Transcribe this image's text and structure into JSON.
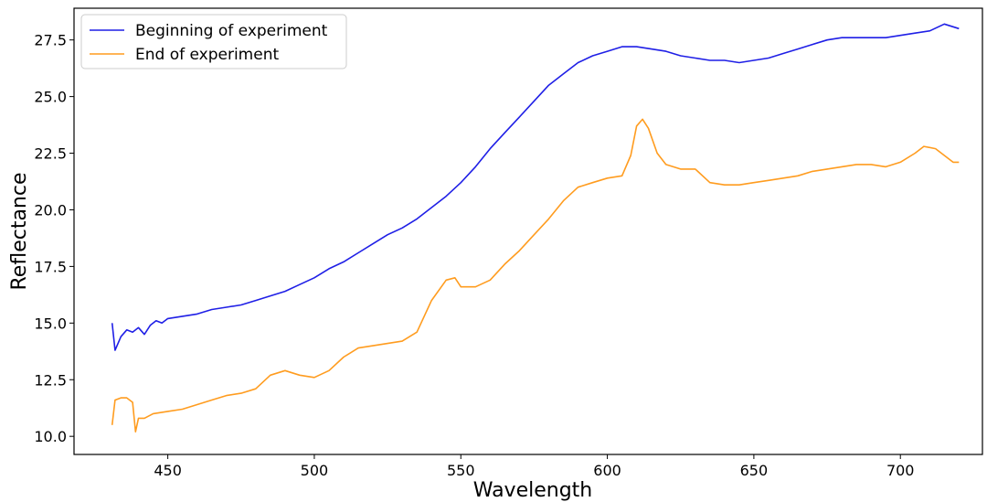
{
  "chart_data": {
    "type": "line",
    "xlabel": "Wavelength",
    "ylabel": "Reflectance",
    "xlim": [
      418,
      728
    ],
    "ylim": [
      9.2,
      28.9
    ],
    "x_ticks": [
      450,
      500,
      550,
      600,
      650,
      700
    ],
    "x_tick_labels": [
      "450",
      "500",
      "550",
      "600",
      "650",
      "700"
    ],
    "y_ticks": [
      10.0,
      12.5,
      15.0,
      17.5,
      20.0,
      22.5,
      25.0,
      27.5
    ],
    "y_tick_labels": [
      "10.0",
      "12.5",
      "15.0",
      "17.5",
      "20.0",
      "22.5",
      "25.0",
      "27.5"
    ],
    "grid": false,
    "legend_position": "top-left",
    "series": [
      {
        "name": "Beginning of experiment",
        "color": "#1f1fe6",
        "points": [
          [
            431,
            15.0
          ],
          [
            432,
            13.8
          ],
          [
            434,
            14.4
          ],
          [
            436,
            14.7
          ],
          [
            438,
            14.6
          ],
          [
            440,
            14.8
          ],
          [
            442,
            14.5
          ],
          [
            444,
            14.9
          ],
          [
            446,
            15.1
          ],
          [
            448,
            15.0
          ],
          [
            450,
            15.2
          ],
          [
            455,
            15.3
          ],
          [
            460,
            15.4
          ],
          [
            465,
            15.6
          ],
          [
            470,
            15.7
          ],
          [
            475,
            15.8
          ],
          [
            480,
            16.0
          ],
          [
            485,
            16.2
          ],
          [
            490,
            16.4
          ],
          [
            495,
            16.7
          ],
          [
            500,
            17.0
          ],
          [
            505,
            17.4
          ],
          [
            510,
            17.7
          ],
          [
            515,
            18.1
          ],
          [
            520,
            18.5
          ],
          [
            525,
            18.9
          ],
          [
            530,
            19.2
          ],
          [
            535,
            19.6
          ],
          [
            540,
            20.1
          ],
          [
            545,
            20.6
          ],
          [
            550,
            21.2
          ],
          [
            555,
            21.9
          ],
          [
            560,
            22.7
          ],
          [
            565,
            23.4
          ],
          [
            570,
            24.1
          ],
          [
            575,
            24.8
          ],
          [
            580,
            25.5
          ],
          [
            585,
            26.0
          ],
          [
            590,
            26.5
          ],
          [
            595,
            26.8
          ],
          [
            600,
            27.0
          ],
          [
            605,
            27.2
          ],
          [
            610,
            27.2
          ],
          [
            615,
            27.1
          ],
          [
            620,
            27.0
          ],
          [
            625,
            26.8
          ],
          [
            630,
            26.7
          ],
          [
            635,
            26.6
          ],
          [
            640,
            26.6
          ],
          [
            645,
            26.5
          ],
          [
            650,
            26.6
          ],
          [
            655,
            26.7
          ],
          [
            660,
            26.9
          ],
          [
            665,
            27.1
          ],
          [
            670,
            27.3
          ],
          [
            675,
            27.5
          ],
          [
            680,
            27.6
          ],
          [
            685,
            27.6
          ],
          [
            690,
            27.6
          ],
          [
            695,
            27.6
          ],
          [
            700,
            27.7
          ],
          [
            705,
            27.8
          ],
          [
            710,
            27.9
          ],
          [
            715,
            28.2
          ],
          [
            720,
            28.0
          ]
        ]
      },
      {
        "name": "End of experiment",
        "color": "#ff9c1f",
        "points": [
          [
            431,
            10.5
          ],
          [
            432,
            11.6
          ],
          [
            434,
            11.7
          ],
          [
            436,
            11.7
          ],
          [
            438,
            11.5
          ],
          [
            439,
            10.2
          ],
          [
            440,
            10.8
          ],
          [
            442,
            10.8
          ],
          [
            445,
            11.0
          ],
          [
            450,
            11.1
          ],
          [
            455,
            11.2
          ],
          [
            460,
            11.4
          ],
          [
            465,
            11.6
          ],
          [
            470,
            11.8
          ],
          [
            475,
            11.9
          ],
          [
            480,
            12.1
          ],
          [
            485,
            12.7
          ],
          [
            490,
            12.9
          ],
          [
            495,
            12.7
          ],
          [
            500,
            12.6
          ],
          [
            505,
            12.9
          ],
          [
            510,
            13.5
          ],
          [
            515,
            13.9
          ],
          [
            520,
            14.0
          ],
          [
            525,
            14.1
          ],
          [
            530,
            14.2
          ],
          [
            535,
            14.6
          ],
          [
            540,
            16.0
          ],
          [
            545,
            16.9
          ],
          [
            548,
            17.0
          ],
          [
            550,
            16.6
          ],
          [
            555,
            16.6
          ],
          [
            560,
            16.9
          ],
          [
            565,
            17.6
          ],
          [
            570,
            18.2
          ],
          [
            575,
            18.9
          ],
          [
            580,
            19.6
          ],
          [
            585,
            20.4
          ],
          [
            590,
            21.0
          ],
          [
            595,
            21.2
          ],
          [
            600,
            21.4
          ],
          [
            605,
            21.5
          ],
          [
            608,
            22.4
          ],
          [
            610,
            23.7
          ],
          [
            612,
            24.0
          ],
          [
            614,
            23.6
          ],
          [
            617,
            22.5
          ],
          [
            620,
            22.0
          ],
          [
            625,
            21.8
          ],
          [
            630,
            21.8
          ],
          [
            635,
            21.2
          ],
          [
            640,
            21.1
          ],
          [
            645,
            21.1
          ],
          [
            650,
            21.2
          ],
          [
            655,
            21.3
          ],
          [
            660,
            21.4
          ],
          [
            665,
            21.5
          ],
          [
            670,
            21.7
          ],
          [
            675,
            21.8
          ],
          [
            680,
            21.9
          ],
          [
            685,
            22.0
          ],
          [
            690,
            22.0
          ],
          [
            695,
            21.9
          ],
          [
            700,
            22.1
          ],
          [
            705,
            22.5
          ],
          [
            708,
            22.8
          ],
          [
            712,
            22.7
          ],
          [
            715,
            22.4
          ],
          [
            718,
            22.1
          ],
          [
            720,
            22.1
          ]
        ]
      }
    ]
  }
}
